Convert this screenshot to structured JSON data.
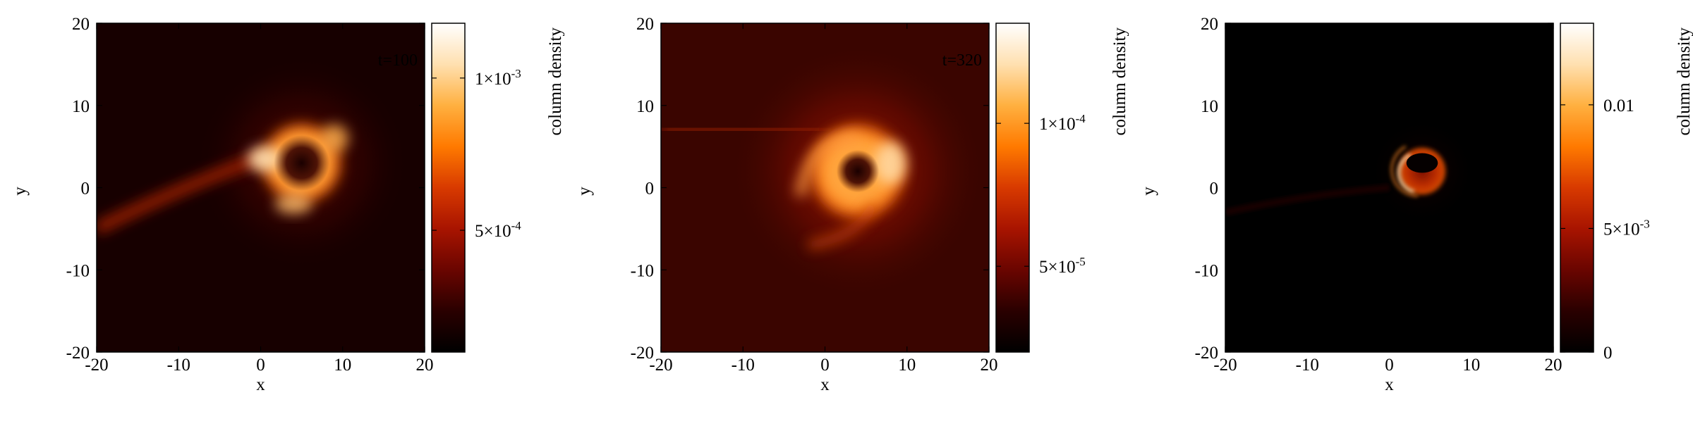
{
  "figure": {
    "panel_labels": [
      "t=100",
      "t=320",
      ""
    ]
  },
  "colors": {
    "cmap": [
      "#000000",
      "#2a0000",
      "#6a0500",
      "#a81400",
      "#d83a00",
      "#ff7a00",
      "#ffb040",
      "#ffe0b0",
      "#ffffff"
    ],
    "axes": "#000000"
  },
  "chart_data": [
    {
      "type": "heatmap",
      "title": "",
      "annotation": "t=100",
      "xlabel": "x",
      "ylabel": "y",
      "xlim": [
        -20,
        20
      ],
      "ylim": [
        -20,
        20
      ],
      "xticks": [
        -20,
        -10,
        0,
        10,
        20
      ],
      "yticks": [
        -20,
        -10,
        0,
        10,
        20
      ],
      "colorbar": {
        "label": "column density",
        "range": [
          0.0001,
          0.00118
        ],
        "ticks": [
          {
            "value": 0.0005,
            "label": "5×10-4"
          },
          {
            "value": 0.001,
            "label": "1×10-3"
          }
        ]
      },
      "features": {
        "ring_center": [
          5,
          3
        ],
        "ring_radius": 5,
        "hole_center": [
          5,
          3
        ],
        "stream_from": [
          -20,
          -5
        ],
        "stream_to": [
          1,
          4
        ]
      },
      "grid": false
    },
    {
      "type": "heatmap",
      "title": "",
      "annotation": "t=320",
      "xlabel": "x",
      "ylabel": "y",
      "xlim": [
        -20,
        20
      ],
      "ylim": [
        -20,
        20
      ],
      "xticks": [
        -20,
        -10,
        0,
        10,
        20
      ],
      "yticks": [
        -20,
        -10,
        0,
        10,
        20
      ],
      "colorbar": {
        "label": "column density",
        "range": [
          2e-05,
          0.000135
        ],
        "ticks": [
          {
            "value": 5e-05,
            "label": "5×10-5"
          },
          {
            "value": 0.0001,
            "label": "1×10-4"
          }
        ]
      },
      "features": {
        "ring_center": [
          4,
          2
        ],
        "ring_radius": 6,
        "hole_center": [
          4,
          2
        ],
        "stream_from": [
          -20,
          7
        ],
        "stream_to": [
          0,
          7
        ]
      },
      "grid": false
    },
    {
      "type": "heatmap",
      "title": "",
      "annotation": "",
      "xlabel": "x",
      "ylabel": "y",
      "xlim": [
        -20,
        20
      ],
      "ylim": [
        -20,
        20
      ],
      "xticks": [
        -20,
        -10,
        0,
        10,
        20
      ],
      "yticks": [
        -20,
        -10,
        0,
        10,
        20
      ],
      "colorbar": {
        "label": "column density",
        "range": [
          0,
          0.0133
        ],
        "ticks": [
          {
            "value": 0,
            "label": "0"
          },
          {
            "value": 0.005,
            "label": "5×10-3"
          },
          {
            "value": 0.01,
            "label": "0.01"
          }
        ]
      },
      "features": {
        "ring_center": [
          4,
          2
        ],
        "ring_radius": 3,
        "hole_center": [
          4,
          3
        ],
        "stream_from": [
          -20,
          -3
        ],
        "stream_to": [
          0,
          0
        ]
      },
      "grid": false
    }
  ]
}
